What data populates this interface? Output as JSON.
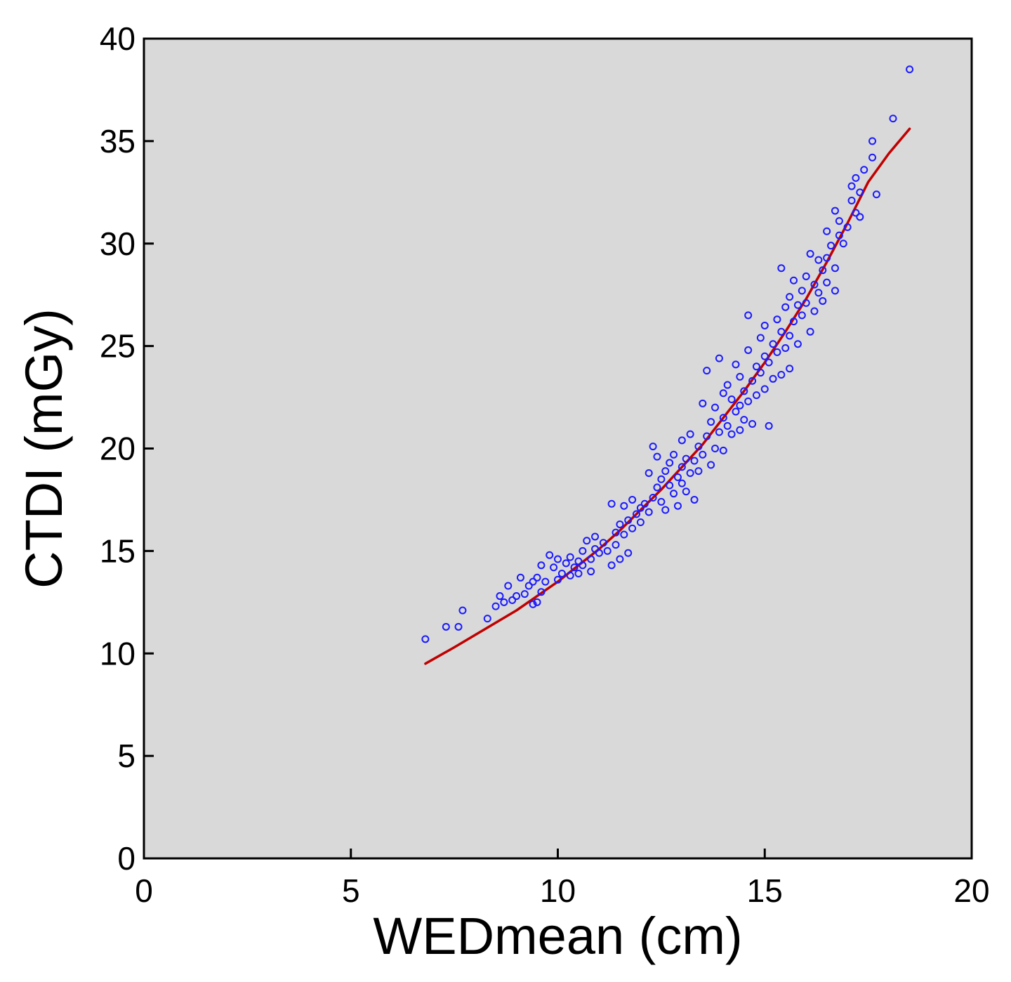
{
  "chart_data": {
    "type": "scatter",
    "title": "",
    "xlabel": "WEDmean (cm)",
    "ylabel": "CTDI (mGy)",
    "xlim": [
      0,
      20
    ],
    "ylim": [
      0,
      40
    ],
    "x_ticks": [
      0,
      5,
      10,
      15,
      20
    ],
    "y_ticks": [
      0,
      5,
      10,
      15,
      20,
      25,
      30,
      35,
      40
    ],
    "x_tick_labels": [
      "0",
      "5",
      "10",
      "15",
      "20"
    ],
    "y_tick_labels": [
      "0",
      "5",
      "10",
      "15",
      "20",
      "25",
      "30",
      "35",
      "40"
    ],
    "grid": false,
    "legend": "none",
    "background_color": "#d9d9d9",
    "point_color": "#1a1aff",
    "fit_color": "#c00000",
    "series": [
      {
        "type": "scatter",
        "marker": "open-circle",
        "points": [
          [
            6.8,
            10.7
          ],
          [
            7.3,
            11.3
          ],
          [
            7.6,
            11.3
          ],
          [
            7.7,
            12.1
          ],
          [
            8.3,
            11.7
          ],
          [
            8.5,
            12.3
          ],
          [
            8.6,
            12.8
          ],
          [
            8.7,
            12.5
          ],
          [
            8.8,
            13.3
          ],
          [
            8.9,
            12.6
          ],
          [
            9.0,
            12.8
          ],
          [
            9.1,
            13.7
          ],
          [
            9.2,
            12.9
          ],
          [
            9.3,
            13.3
          ],
          [
            9.4,
            13.5
          ],
          [
            9.4,
            12.4
          ],
          [
            9.5,
            12.5
          ],
          [
            9.5,
            13.7
          ],
          [
            9.6,
            13.0
          ],
          [
            9.6,
            14.3
          ],
          [
            9.7,
            13.5
          ],
          [
            9.8,
            14.8
          ],
          [
            9.9,
            14.2
          ],
          [
            10.0,
            13.6
          ],
          [
            10.0,
            14.6
          ],
          [
            10.1,
            13.9
          ],
          [
            10.2,
            14.4
          ],
          [
            10.3,
            13.8
          ],
          [
            10.3,
            14.7
          ],
          [
            10.4,
            14.2
          ],
          [
            10.5,
            14.5
          ],
          [
            10.5,
            13.9
          ],
          [
            10.6,
            15.0
          ],
          [
            10.6,
            14.3
          ],
          [
            10.7,
            15.5
          ],
          [
            10.8,
            14.6
          ],
          [
            10.8,
            14.0
          ],
          [
            10.9,
            15.7
          ],
          [
            10.9,
            15.1
          ],
          [
            11.0,
            14.9
          ],
          [
            11.1,
            15.4
          ],
          [
            11.2,
            15.0
          ],
          [
            11.3,
            17.3
          ],
          [
            11.3,
            14.3
          ],
          [
            11.4,
            15.9
          ],
          [
            11.4,
            15.3
          ],
          [
            11.5,
            16.3
          ],
          [
            11.5,
            14.6
          ],
          [
            11.6,
            17.2
          ],
          [
            11.6,
            15.8
          ],
          [
            11.7,
            16.5
          ],
          [
            11.7,
            14.9
          ],
          [
            11.8,
            17.5
          ],
          [
            11.8,
            16.1
          ],
          [
            11.9,
            16.8
          ],
          [
            12.0,
            16.4
          ],
          [
            12.0,
            17.1
          ],
          [
            12.1,
            17.3
          ],
          [
            12.2,
            18.8
          ],
          [
            12.2,
            16.9
          ],
          [
            12.3,
            17.6
          ],
          [
            12.3,
            20.1
          ],
          [
            12.4,
            18.1
          ],
          [
            12.4,
            19.6
          ],
          [
            12.5,
            17.4
          ],
          [
            12.5,
            18.5
          ],
          [
            12.6,
            18.9
          ],
          [
            12.6,
            17.0
          ],
          [
            12.7,
            18.2
          ],
          [
            12.7,
            19.3
          ],
          [
            12.8,
            17.8
          ],
          [
            12.8,
            19.7
          ],
          [
            12.9,
            18.6
          ],
          [
            12.9,
            17.2
          ],
          [
            13.0,
            19.1
          ],
          [
            13.0,
            18.3
          ],
          [
            13.0,
            20.4
          ],
          [
            13.1,
            19.5
          ],
          [
            13.1,
            17.9
          ],
          [
            13.2,
            18.8
          ],
          [
            13.2,
            20.7
          ],
          [
            13.3,
            19.4
          ],
          [
            13.3,
            17.5
          ],
          [
            13.4,
            20.1
          ],
          [
            13.4,
            18.9
          ],
          [
            13.5,
            22.2
          ],
          [
            13.5,
            19.7
          ],
          [
            13.6,
            23.8
          ],
          [
            13.6,
            20.6
          ],
          [
            13.7,
            19.2
          ],
          [
            13.7,
            21.3
          ],
          [
            13.8,
            20.0
          ],
          [
            13.8,
            22.0
          ],
          [
            13.9,
            24.4
          ],
          [
            13.9,
            20.8
          ],
          [
            14.0,
            21.5
          ],
          [
            14.0,
            19.9
          ],
          [
            14.0,
            22.7
          ],
          [
            14.1,
            21.1
          ],
          [
            14.1,
            23.1
          ],
          [
            14.2,
            20.7
          ],
          [
            14.2,
            22.4
          ],
          [
            14.3,
            21.8
          ],
          [
            14.3,
            24.1
          ],
          [
            14.4,
            22.1
          ],
          [
            14.4,
            20.9
          ],
          [
            14.4,
            23.5
          ],
          [
            14.5,
            22.8
          ],
          [
            14.5,
            21.4
          ],
          [
            14.6,
            24.8
          ],
          [
            14.6,
            22.3
          ],
          [
            14.6,
            26.5
          ],
          [
            14.7,
            23.3
          ],
          [
            14.7,
            21.2
          ],
          [
            14.8,
            24.0
          ],
          [
            14.8,
            22.6
          ],
          [
            14.9,
            25.4
          ],
          [
            14.9,
            23.7
          ],
          [
            15.0,
            24.5
          ],
          [
            15.0,
            22.9
          ],
          [
            15.0,
            26.0
          ],
          [
            15.1,
            24.2
          ],
          [
            15.1,
            21.1
          ],
          [
            15.2,
            25.1
          ],
          [
            15.2,
            23.4
          ],
          [
            15.3,
            26.3
          ],
          [
            15.3,
            24.7
          ],
          [
            15.4,
            25.7
          ],
          [
            15.4,
            28.8
          ],
          [
            15.4,
            23.6
          ],
          [
            15.5,
            26.9
          ],
          [
            15.5,
            24.9
          ],
          [
            15.6,
            25.5
          ],
          [
            15.6,
            27.4
          ],
          [
            15.6,
            23.9
          ],
          [
            15.7,
            26.2
          ],
          [
            15.7,
            28.2
          ],
          [
            15.8,
            27.0
          ],
          [
            15.8,
            25.1
          ],
          [
            15.9,
            27.7
          ],
          [
            15.9,
            26.5
          ],
          [
            16.0,
            28.4
          ],
          [
            16.0,
            27.1
          ],
          [
            16.1,
            29.5
          ],
          [
            16.1,
            25.7
          ],
          [
            16.2,
            28.0
          ],
          [
            16.2,
            26.7
          ],
          [
            16.3,
            29.2
          ],
          [
            16.3,
            27.6
          ],
          [
            16.4,
            28.7
          ],
          [
            16.4,
            27.2
          ],
          [
            16.5,
            30.6
          ],
          [
            16.5,
            29.3
          ],
          [
            16.5,
            28.1
          ],
          [
            16.6,
            29.9
          ],
          [
            16.7,
            31.6
          ],
          [
            16.7,
            28.8
          ],
          [
            16.7,
            27.7
          ],
          [
            16.8,
            30.4
          ],
          [
            16.8,
            31.1
          ],
          [
            16.9,
            30.0
          ],
          [
            17.0,
            30.8
          ],
          [
            17.1,
            32.8
          ],
          [
            17.1,
            32.1
          ],
          [
            17.2,
            33.2
          ],
          [
            17.2,
            31.5
          ],
          [
            17.3,
            32.5
          ],
          [
            17.3,
            31.3
          ],
          [
            17.4,
            33.6
          ],
          [
            17.6,
            34.2
          ],
          [
            17.6,
            35.0
          ],
          [
            17.7,
            32.4
          ],
          [
            18.1,
            36.1
          ],
          [
            18.5,
            38.5
          ]
        ]
      },
      {
        "type": "line",
        "curve": "fit",
        "points": [
          [
            6.8,
            9.5
          ],
          [
            7.5,
            10.3
          ],
          [
            8.0,
            10.9
          ],
          [
            8.5,
            11.5
          ],
          [
            9.0,
            12.1
          ],
          [
            9.5,
            12.8
          ],
          [
            10.0,
            13.5
          ],
          [
            10.5,
            14.3
          ],
          [
            11.0,
            15.1
          ],
          [
            11.5,
            16.0
          ],
          [
            12.0,
            17.0
          ],
          [
            12.5,
            18.0
          ],
          [
            13.0,
            19.1
          ],
          [
            13.5,
            20.2
          ],
          [
            14.0,
            21.5
          ],
          [
            14.5,
            22.8
          ],
          [
            15.0,
            24.2
          ],
          [
            15.5,
            25.7
          ],
          [
            16.0,
            27.3
          ],
          [
            16.5,
            29.1
          ],
          [
            17.0,
            31.0
          ],
          [
            17.5,
            33.0
          ],
          [
            18.0,
            34.4
          ],
          [
            18.5,
            35.6
          ]
        ]
      }
    ]
  }
}
